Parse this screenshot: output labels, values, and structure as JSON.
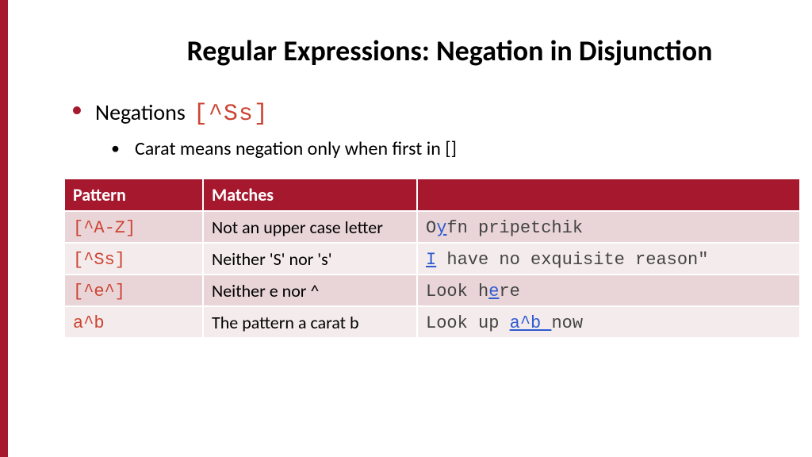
{
  "title": "Regular Expressions: Negation in Disjunction",
  "bullet1_text": "Negations",
  "bullet1_code": "[^Ss]",
  "bullet2_text": "Carat means negation only when first in []",
  "table": {
    "columns": [
      "Pattern",
      "Matches",
      ""
    ],
    "header_bg": "#a6182e",
    "header_fg": "#ffffff",
    "row_odd_bg": "#e9d5d8",
    "row_even_bg": "#f4ebec",
    "pattern_color": "#cc4433",
    "highlight_color": "#2f5bd0",
    "rows": [
      {
        "pattern": "[^A-Z]",
        "matches": "Not an upper case letter",
        "example_pre": "O",
        "example_hl": "y",
        "example_post": "fn pripetchik"
      },
      {
        "pattern": "[^Ss]",
        "matches": "Neither 'S' nor 's'",
        "example_pre": "",
        "example_hl": "I",
        "example_post": " have no exquisite reason\""
      },
      {
        "pattern": "[^e^]",
        "matches": "Neither e nor ^",
        "example_pre": "Look h",
        "example_hl": "e",
        "example_post": "re"
      },
      {
        "pattern": "a^b",
        "matches": "The pattern a carat b",
        "example_pre": "Look up ",
        "example_hl": "a^b ",
        "example_post": "now"
      }
    ]
  },
  "accent_color": "#a6182e",
  "background_color": "#ffffff"
}
